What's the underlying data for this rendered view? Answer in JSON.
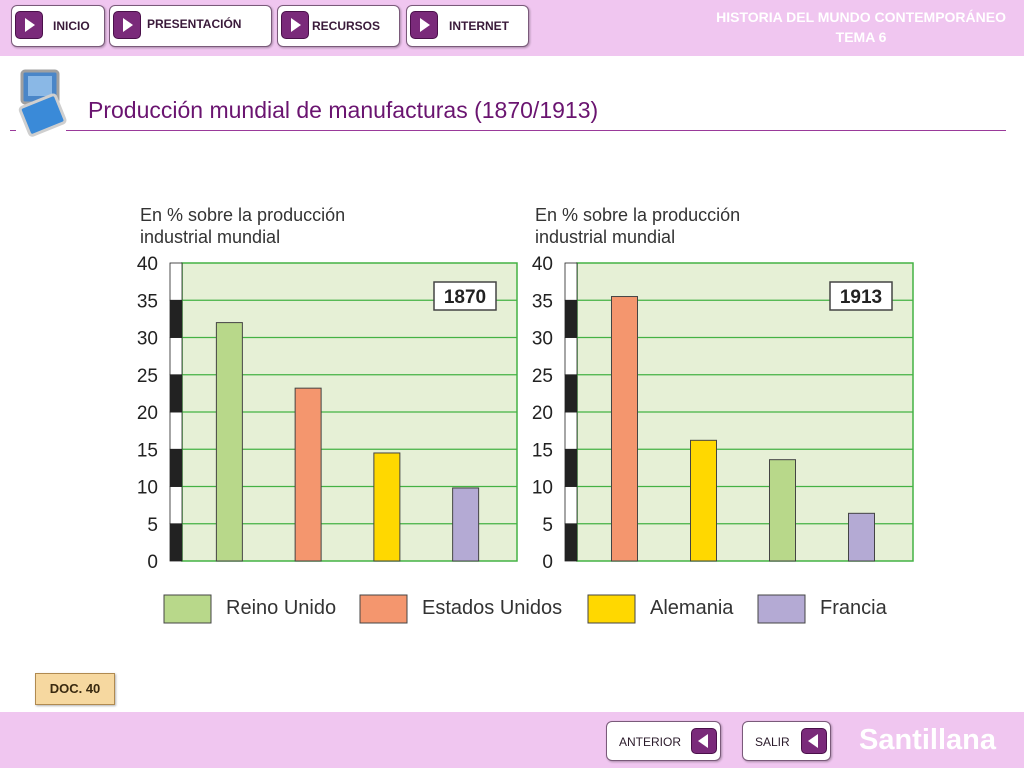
{
  "nav": {
    "inicio": "INICIO",
    "presentacion": "PRESENTACIÓN",
    "recursos": "RECURSOS",
    "internet": "INTERNET"
  },
  "header": {
    "course_title": "HISTORIA DEL MUNDO CONTEMPORÁNEO",
    "unit": "TEMA 6"
  },
  "page": {
    "heading": "Producción mundial de manufacturas (1870/1913)",
    "doc_label": "DOC. 40"
  },
  "footer": {
    "prev": "ANTERIOR",
    "exit": "SALIR",
    "brand": "Santillana"
  },
  "colors": {
    "Reino Unido": "#b8d88a",
    "Estados Unidos": "#f4966e",
    "Alemania": "#ffd800",
    "Francia": "#b4aad4",
    "plot_background": "#e6f0d6",
    "gridline": "#44b244"
  },
  "chart_data": [
    {
      "type": "bar",
      "ylabel": "En % sobre la producción industrial mundial",
      "annotation": "1870",
      "categories": [
        "Reino Unido",
        "Estados Unidos",
        "Alemania",
        "Francia"
      ],
      "values": [
        32,
        23.2,
        14.5,
        9.8
      ],
      "ylim": [
        0,
        40
      ],
      "yticks": [
        0,
        5,
        10,
        15,
        20,
        25,
        30,
        35,
        40
      ],
      "grid": true
    },
    {
      "type": "bar",
      "ylabel": "En % sobre la producción industrial mundial",
      "annotation": "1913",
      "categories": [
        "Estados Unidos",
        "Alemania",
        "Reino Unido",
        "Francia"
      ],
      "values": [
        35.5,
        16.2,
        13.6,
        6.4
      ],
      "ylim": [
        0,
        40
      ],
      "yticks": [
        0,
        5,
        10,
        15,
        20,
        25,
        30,
        35,
        40
      ],
      "grid": true
    }
  ],
  "legend": [
    "Reino Unido",
    "Estados Unidos",
    "Alemania",
    "Francia"
  ]
}
